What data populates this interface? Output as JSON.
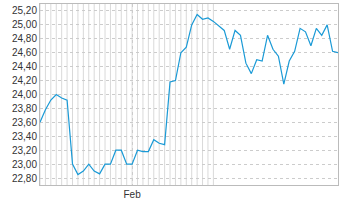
{
  "chart_data": {
    "type": "line",
    "color": "#1a9ad6",
    "categories": [
      null,
      null,
      null,
      null,
      null,
      null,
      null,
      null,
      null,
      null,
      null,
      null,
      null,
      null,
      null,
      null,
      null,
      "Feb",
      null,
      null,
      null,
      null,
      null,
      null,
      null,
      null,
      null,
      null,
      null,
      null,
      null,
      null,
      null,
      null,
      null,
      null,
      null,
      null,
      null,
      null,
      null,
      null,
      null,
      null,
      null,
      null,
      null,
      null,
      null,
      null,
      null,
      null,
      null,
      null,
      null,
      null
    ],
    "values": [
      23.6,
      23.78,
      23.92,
      24.0,
      23.95,
      23.92,
      23.0,
      22.85,
      22.9,
      23.0,
      22.9,
      22.86,
      23.0,
      23.0,
      23.2,
      23.2,
      23.0,
      23.0,
      23.2,
      23.18,
      23.18,
      23.35,
      23.3,
      23.28,
      24.18,
      24.2,
      24.6,
      24.68,
      25.0,
      25.15,
      25.08,
      25.1,
      25.05,
      24.98,
      24.92,
      24.65,
      24.92,
      24.85,
      24.45,
      24.3,
      24.5,
      24.48,
      24.85,
      24.65,
      24.55,
      24.15,
      24.48,
      24.62,
      24.95,
      24.9,
      24.7,
      24.95,
      24.85,
      25.0,
      24.62,
      24.6
    ],
    "shaded_range": [
      0,
      32
    ],
    "ylim": [
      22.7,
      25.3
    ],
    "yticks": [
      {
        "value": 22.8,
        "label": "22,80"
      },
      {
        "value": 23.0,
        "label": "23,00"
      },
      {
        "value": 23.2,
        "label": "23,20"
      },
      {
        "value": 23.4,
        "label": "23,40"
      },
      {
        "value": 23.6,
        "label": "23,60"
      },
      {
        "value": 23.8,
        "label": "23,80"
      },
      {
        "value": 24.0,
        "label": "24,00"
      },
      {
        "value": 24.2,
        "label": "24,20"
      },
      {
        "value": 24.4,
        "label": "24,40"
      },
      {
        "value": 24.6,
        "label": "24,60"
      },
      {
        "value": 24.8,
        "label": "24,80"
      },
      {
        "value": 25.0,
        "label": "25,00"
      },
      {
        "value": 25.2,
        "label": "25,20"
      }
    ],
    "grid": true
  }
}
